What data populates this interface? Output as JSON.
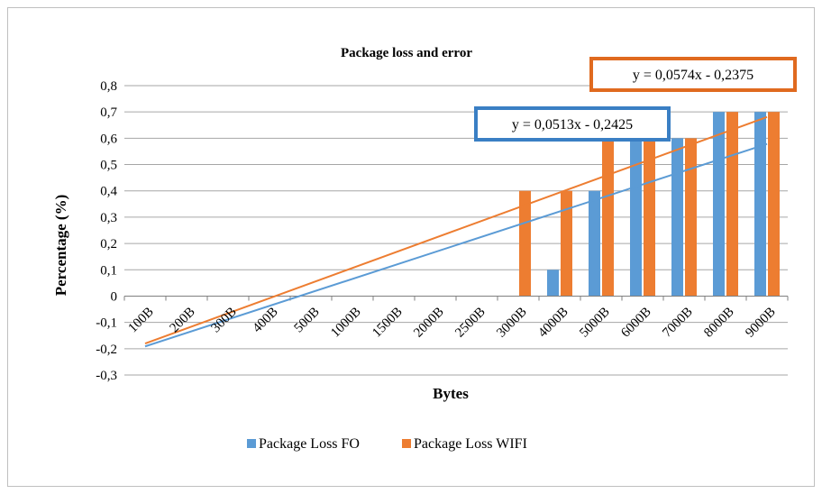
{
  "chart_data": {
    "type": "bar",
    "title": "Package loss and error",
    "xlabel": "Bytes",
    "ylabel": "Percentage (%)",
    "ylim": [
      -0.3,
      0.8
    ],
    "ytick_labels": [
      "-0,3",
      "-0,2",
      "-0,1",
      "0",
      "0,1",
      "0,2",
      "0,3",
      "0,4",
      "0,5",
      "0,6",
      "0,7",
      "0,8"
    ],
    "categories": [
      "100B",
      "200B",
      "300B",
      "400B",
      "500B",
      "1000B",
      "1500B",
      "2000B",
      "2500B",
      "3000B",
      "4000B",
      "5000B",
      "6000B",
      "7000B",
      "8000B",
      "9000B"
    ],
    "series": [
      {
        "name": "Package Loss FO",
        "color": "#5b9bd5",
        "values": [
          0,
          0,
          0,
          0,
          0,
          0,
          0,
          0,
          0,
          0,
          0.1,
          0.4,
          0.6,
          0.6,
          0.7,
          0.7
        ],
        "trendline": {
          "slope": 0.0513,
          "intercept": -0.2425,
          "label": "y = 0,0513x - 0,2425",
          "box_color": "#3a7fc4"
        }
      },
      {
        "name": "Package Loss WIFI",
        "color": "#ed7d31",
        "values": [
          0,
          0,
          0,
          0,
          0,
          0,
          0,
          0,
          0,
          0.4,
          0.4,
          0.6,
          0.6,
          0.6,
          0.7,
          0.7
        ],
        "trendline": {
          "slope": 0.0574,
          "intercept": -0.2375,
          "label": "y = 0,0574x - 0,2375",
          "box_color": "#e06a1f"
        }
      }
    ],
    "grid": true,
    "legend_position": "bottom"
  }
}
